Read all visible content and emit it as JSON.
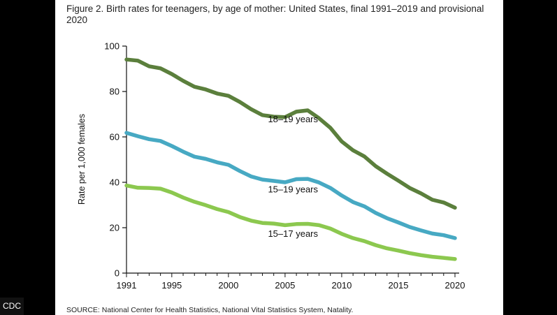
{
  "chart_data": {
    "type": "line",
    "title": "Figure 2. Birth rates for teenagers, by age of mother: United States, final 1991–2019 and provisional 2020",
    "xlabel": "",
    "ylabel": "Rate per 1,000 females",
    "xlim": [
      1991,
      2020
    ],
    "ylim": [
      0,
      100
    ],
    "x_ticks": [
      1991,
      1995,
      2000,
      2005,
      2010,
      2015,
      2020
    ],
    "y_ticks": [
      0,
      20,
      40,
      60,
      80,
      100
    ],
    "grid": false,
    "legend": "inline labels",
    "x": [
      1991,
      1992,
      1993,
      1994,
      1995,
      1996,
      1997,
      1998,
      1999,
      2000,
      2001,
      2002,
      2003,
      2004,
      2005,
      2006,
      2007,
      2008,
      2009,
      2010,
      2011,
      2012,
      2013,
      2014,
      2015,
      2016,
      2017,
      2018,
      2019,
      2020
    ],
    "series": [
      {
        "name": "18–19 years",
        "color": "#5b7f3c",
        "values": [
          94.1,
          93.6,
          91.1,
          90.2,
          87.7,
          84.7,
          82.1,
          80.9,
          79.1,
          78.1,
          75.4,
          72.2,
          69.6,
          68.9,
          68.7,
          71.1,
          71.7,
          68.2,
          64.0,
          58.0,
          54.1,
          51.4,
          47.1,
          43.8,
          40.7,
          37.5,
          35.1,
          32.3,
          31.1,
          28.8
        ]
      },
      {
        "name": "15–19 years",
        "color": "#47a9c3",
        "values": [
          61.8,
          60.3,
          59.0,
          58.2,
          56.0,
          53.5,
          51.3,
          50.3,
          48.8,
          47.7,
          45.0,
          42.6,
          41.2,
          40.6,
          40.0,
          41.4,
          41.5,
          39.9,
          37.5,
          34.2,
          31.3,
          29.4,
          26.5,
          24.2,
          22.3,
          20.3,
          18.8,
          17.4,
          16.7,
          15.4
        ]
      },
      {
        "name": "15–17 years",
        "color": "#8cc84f",
        "values": [
          38.6,
          37.6,
          37.5,
          37.2,
          35.5,
          33.3,
          31.4,
          29.9,
          28.2,
          26.9,
          24.7,
          23.1,
          22.1,
          21.8,
          21.1,
          21.6,
          21.7,
          21.1,
          19.6,
          17.3,
          15.4,
          14.1,
          12.3,
          10.9,
          9.9,
          8.8,
          7.9,
          7.2,
          6.7,
          6.2
        ]
      }
    ],
    "annotations": [
      "18–19 years",
      "15–19 years",
      "15–17 years"
    ]
  },
  "source_note": "SOURCE: National Center for Health Statistics, National Vital Statistics System, Natality.",
  "source_badge": "CDC"
}
